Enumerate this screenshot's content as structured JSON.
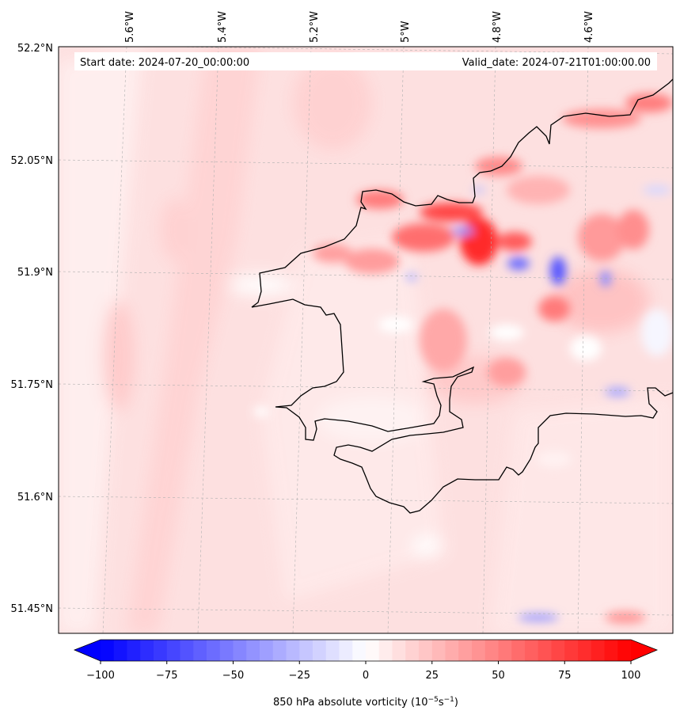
{
  "map": {
    "start_date": "Start date: 2024-07-20_00:00:00",
    "valid_date": "Valid_date: 2024-07-21T01:00:00.00",
    "lon_labels": [
      "5.6°W",
      "5.4°W",
      "5.2°W",
      "5°W",
      "4.8°W",
      "4.6°W"
    ],
    "lat_labels": [
      "52.2°N",
      "52.05°N",
      "51.9°N",
      "51.75°N",
      "51.6°N",
      "51.45°N"
    ]
  },
  "colorbar": {
    "ticks": [
      "−100",
      "−75",
      "−50",
      "−25",
      "0",
      "25",
      "50",
      "75",
      "100"
    ],
    "label_main": "850 hPa absolute vorticity (10",
    "label_sup1": "−5",
    "label_mid": "s",
    "label_sup2": "−1",
    "label_end": ")",
    "min": -100,
    "max": 100,
    "colors": {
      "negative": "#0000ff",
      "zero": "#ffffff",
      "positive": "#ff0000"
    }
  },
  "colors": {
    "background_field": "#ffe2e2",
    "coastline": "#000000"
  }
}
